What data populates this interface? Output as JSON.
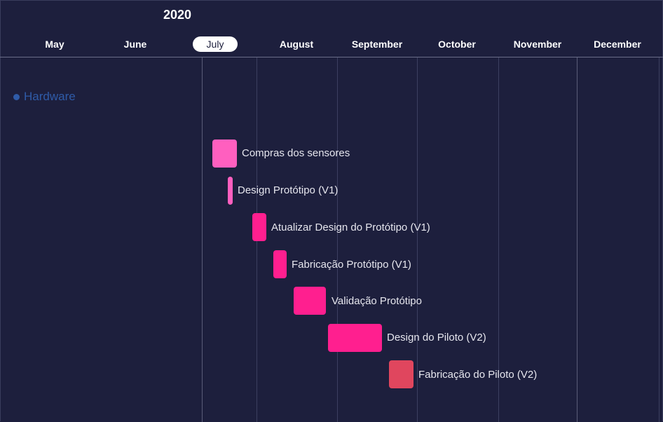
{
  "timeline": {
    "year": "2020",
    "months": [
      {
        "label": "May"
      },
      {
        "label": "June"
      },
      {
        "label": "July",
        "current": true
      },
      {
        "label": "August"
      },
      {
        "label": "September"
      },
      {
        "label": "October"
      },
      {
        "label": "November"
      },
      {
        "label": "December"
      }
    ]
  },
  "group": {
    "label": "Hardware",
    "color": "#2f5ba8"
  },
  "tasks": [
    {
      "label": "Compras dos sensores",
      "color": "#ff5fbf"
    },
    {
      "label": "Design Protótipo (V1)",
      "color": "#ff5fbf"
    },
    {
      "label": "Atualizar Design do Protótipo (V1)",
      "color": "#ff1f8f"
    },
    {
      "label": "Fabricação Protótipo (V1)",
      "color": "#ff1f8f"
    },
    {
      "label": "Validação Protótipo",
      "color": "#ff1f8f"
    },
    {
      "label": "Design do Piloto (V2)",
      "color": "#ff1f8f"
    },
    {
      "label": "Fabricação do Piloto (V2)",
      "color": "#e0465e"
    }
  ]
}
